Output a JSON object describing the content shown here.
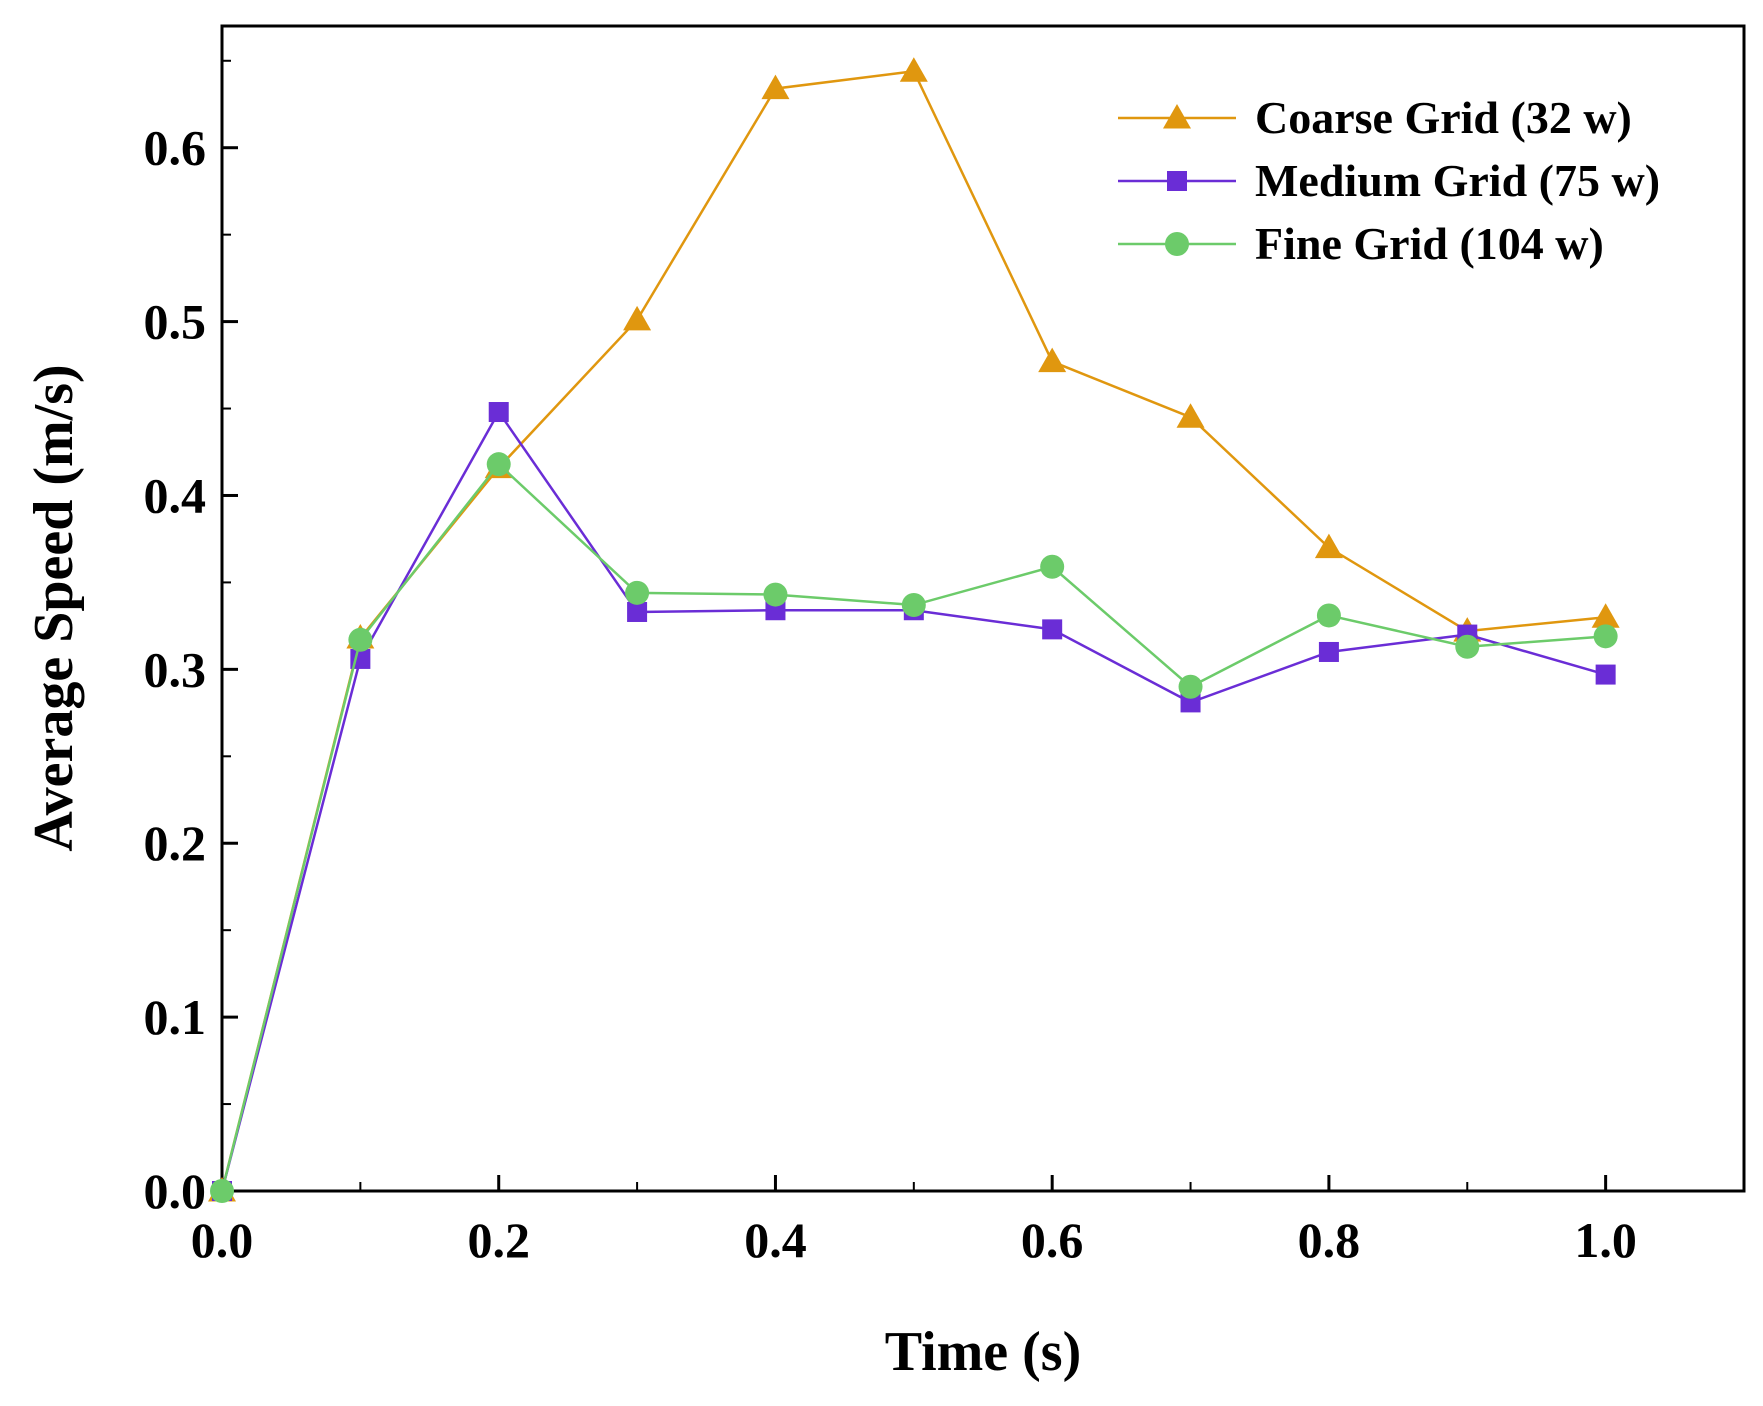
{
  "chart_data": {
    "type": "line",
    "title": "",
    "xlabel": "Time (s)",
    "ylabel": "Average Speed (m/s)",
    "xlim": [
      0.0,
      1.1
    ],
    "ylim": [
      0.0,
      0.67
    ],
    "xticks": [
      "0.0",
      "0.2",
      "0.4",
      "0.6",
      "0.8",
      "1.0"
    ],
    "yticks": [
      "0.0",
      "0.1",
      "0.2",
      "0.3",
      "0.4",
      "0.5",
      "0.6"
    ],
    "grid": false,
    "legend_position": "top-right",
    "x": [
      0.0,
      0.1,
      0.2,
      0.3,
      0.4,
      0.5,
      0.6,
      0.7,
      0.8,
      0.9,
      1.0
    ],
    "series": [
      {
        "name": "Coarse Grid (32 w)",
        "marker": "triangle",
        "color": "#E0970F",
        "values": [
          0.0,
          0.318,
          0.416,
          0.501,
          0.634,
          0.644,
          0.477,
          0.445,
          0.37,
          0.322,
          0.33
        ]
      },
      {
        "name": "Medium Grid (75 w)",
        "marker": "square",
        "color": "#6A2DD6",
        "values": [
          0.0,
          0.306,
          0.448,
          0.333,
          0.334,
          0.334,
          0.323,
          0.281,
          0.31,
          0.32,
          0.297
        ]
      },
      {
        "name": "Fine Grid (104 w)",
        "marker": "circle",
        "color": "#6CCB6A",
        "values": [
          0.0,
          0.317,
          0.418,
          0.344,
          0.343,
          0.337,
          0.359,
          0.29,
          0.331,
          0.313,
          0.319
        ]
      }
    ]
  }
}
